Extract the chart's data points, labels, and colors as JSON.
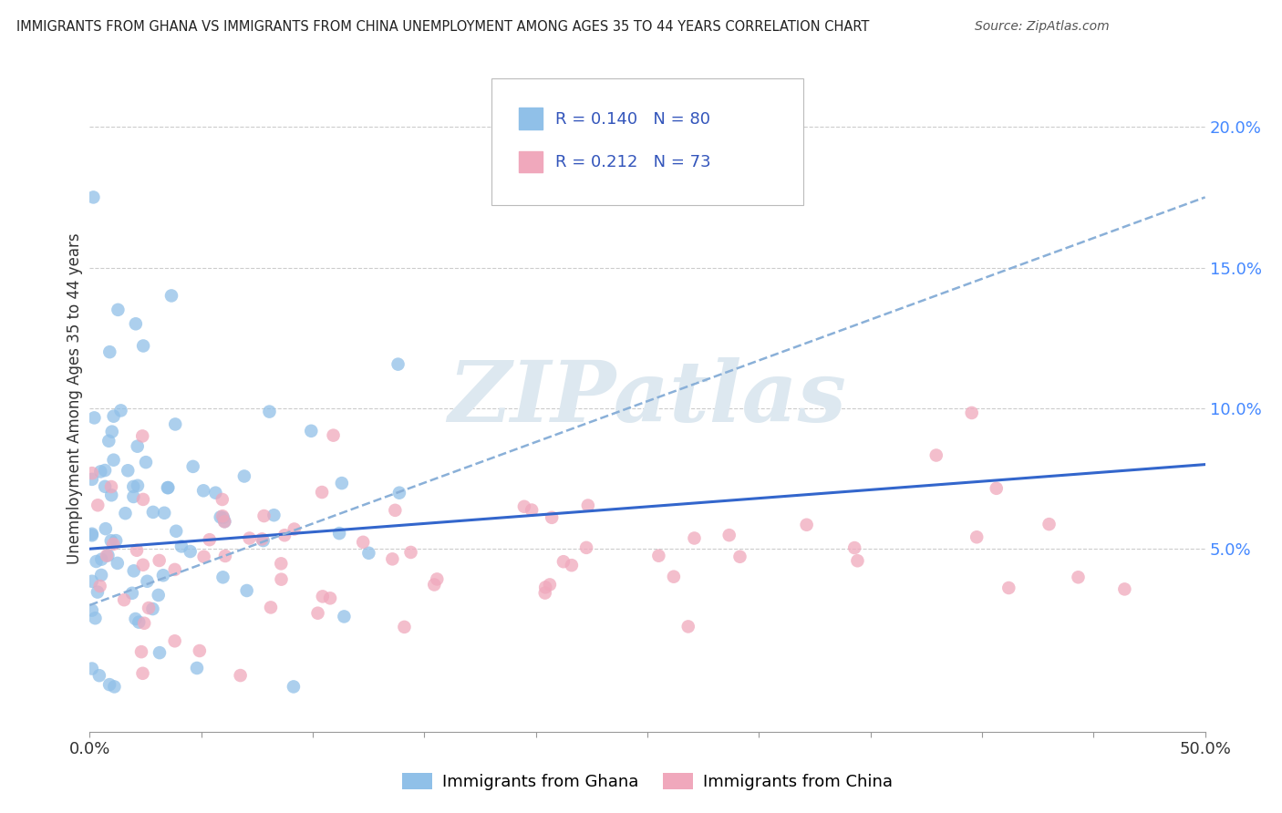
{
  "title": "IMMIGRANTS FROM GHANA VS IMMIGRANTS FROM CHINA UNEMPLOYMENT AMONG AGES 35 TO 44 YEARS CORRELATION CHART",
  "source": "Source: ZipAtlas.com",
  "ylabel": "Unemployment Among Ages 35 to 44 years",
  "y_tick_labels": [
    "5.0%",
    "10.0%",
    "15.0%",
    "20.0%"
  ],
  "y_tick_values": [
    0.05,
    0.1,
    0.15,
    0.2
  ],
  "xlim": [
    0,
    0.5
  ],
  "ylim": [
    -0.015,
    0.222
  ],
  "ghana_R": 0.14,
  "ghana_N": 80,
  "china_R": 0.212,
  "china_N": 73,
  "ghana_color": "#90c0e8",
  "china_color": "#f0a8bc",
  "ghana_line_color": "#3366cc",
  "china_line_color": "#8ab0d8",
  "china_trend_style": "--",
  "ghana_trend_style": "-",
  "watermark": "ZIPatlas",
  "watermark_color": "#dde8f0",
  "legend_text_color": "#3355bb",
  "tick_color": "#4488ff"
}
